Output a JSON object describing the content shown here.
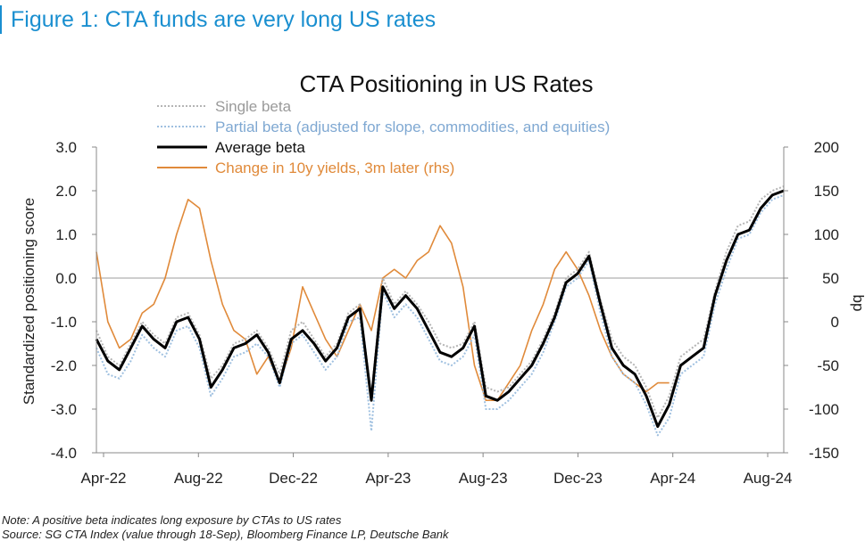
{
  "figure_title": "Figure 1: CTA funds are very long US rates",
  "notes": {
    "note": "Note: A positive beta indicates long exposure by CTAs to US rates",
    "source": "Source: SG CTA Index (value through 18-Sep), Bloomberg Finance LP, Deutsche Bank"
  },
  "colors": {
    "title_blue": "#1a8fd0",
    "single_beta": "#b5b5b5",
    "partial_beta": "#9fc0e0",
    "average_beta": "#000000",
    "yield_change": "#e08a3a"
  },
  "chart_data": {
    "type": "line",
    "title": "CTA Positioning in US Rates",
    "xlabel": "",
    "ylabel": "Standardized positioning score",
    "y2label": "bp",
    "x_ticks": [
      "Apr-22",
      "Aug-22",
      "Dec-22",
      "Apr-23",
      "Aug-23",
      "Dec-23",
      "Apr-24",
      "Aug-24"
    ],
    "x_range": [
      0,
      30
    ],
    "ylim": [
      -4.0,
      3.0
    ],
    "y_ticks": [
      "3.0",
      "2.0",
      "1.0",
      "0.0",
      "-1.0",
      "-2.0",
      "-3.0",
      "-4.0"
    ],
    "y2lim": [
      -150,
      200
    ],
    "y2_ticks": [
      "200",
      "150",
      "100",
      "50",
      "0",
      "-50",
      "-100",
      "-150"
    ],
    "legend": [
      "Single beta",
      "Partial beta (adjusted for slope, commodities, and equities)",
      "Average beta",
      "Change in 10y yields, 3m later (rhs)"
    ],
    "legend_position": "top-left",
    "series": [
      {
        "name": "Single beta",
        "axis": "left",
        "x": [
          0,
          0.5,
          1,
          1.5,
          2,
          2.5,
          3,
          3.5,
          4,
          4.5,
          5,
          5.5,
          6,
          6.5,
          7,
          7.5,
          8,
          8.5,
          9,
          9.5,
          10,
          10.5,
          11,
          11.5,
          12,
          12.5,
          13,
          13.5,
          14,
          14.5,
          15,
          15.5,
          16,
          16.5,
          17,
          17.5,
          18,
          18.5,
          19,
          19.5,
          20,
          20.5,
          21,
          21.5,
          22,
          22.5,
          23,
          23.5,
          24,
          24.5,
          25,
          25.5,
          26,
          26.5,
          27,
          27.5,
          28,
          28.5,
          29,
          29.5,
          30
        ],
        "y": [
          -1.2,
          -1.8,
          -2.0,
          -1.5,
          -1.0,
          -1.3,
          -1.5,
          -0.9,
          -0.8,
          -1.3,
          -2.3,
          -2.0,
          -1.5,
          -1.4,
          -1.2,
          -1.6,
          -2.2,
          -1.2,
          -1.0,
          -1.4,
          -1.8,
          -1.5,
          -0.8,
          -0.6,
          -2.7,
          0.0,
          -0.6,
          -0.3,
          -0.6,
          -1.0,
          -1.5,
          -1.6,
          -1.5,
          -1.0,
          -2.5,
          -2.6,
          -2.5,
          -2.2,
          -1.9,
          -1.4,
          -0.8,
          0.0,
          0.2,
          0.6,
          -0.5,
          -1.4,
          -1.8,
          -2.0,
          -2.5,
          -3.2,
          -2.7,
          -1.8,
          -1.6,
          -1.4,
          -0.3,
          0.6,
          1.2,
          1.3,
          1.8,
          2.0,
          2.1
        ]
      },
      {
        "name": "Partial beta (adjusted for slope, commodities, and equities)",
        "axis": "left",
        "x": [
          0,
          0.5,
          1,
          1.5,
          2,
          2.5,
          3,
          3.5,
          4,
          4.5,
          5,
          5.5,
          6,
          6.5,
          7,
          7.5,
          8,
          8.5,
          9,
          9.5,
          10,
          10.5,
          11,
          11.5,
          12,
          12.5,
          13,
          13.5,
          14,
          14.5,
          15,
          15.5,
          16,
          16.5,
          17,
          17.5,
          18,
          18.5,
          19,
          19.5,
          20,
          20.5,
          21,
          21.5,
          22,
          22.5,
          23,
          23.5,
          24,
          24.5,
          25,
          25.5,
          26,
          26.5,
          27,
          27.5,
          28,
          28.5,
          29,
          29.5,
          30
        ],
        "y": [
          -1.6,
          -2.2,
          -2.3,
          -1.9,
          -1.3,
          -1.6,
          -1.8,
          -1.2,
          -1.1,
          -1.6,
          -2.7,
          -2.3,
          -1.8,
          -1.7,
          -1.5,
          -1.8,
          -2.5,
          -1.5,
          -1.3,
          -1.7,
          -2.1,
          -1.8,
          -1.0,
          -0.9,
          -3.5,
          -0.3,
          -0.9,
          -0.6,
          -0.9,
          -1.4,
          -1.9,
          -2.0,
          -1.8,
          -1.3,
          -3.0,
          -3.0,
          -2.8,
          -2.5,
          -2.2,
          -1.7,
          -1.0,
          -0.2,
          0.0,
          0.4,
          -0.8,
          -1.8,
          -2.2,
          -2.4,
          -2.9,
          -3.6,
          -3.2,
          -2.2,
          -2.0,
          -1.8,
          -0.6,
          0.2,
          0.9,
          1.0,
          1.5,
          1.8,
          1.9
        ]
      },
      {
        "name": "Average beta",
        "axis": "left",
        "x": [
          0,
          0.5,
          1,
          1.5,
          2,
          2.5,
          3,
          3.5,
          4,
          4.5,
          5,
          5.5,
          6,
          6.5,
          7,
          7.5,
          8,
          8.5,
          9,
          9.5,
          10,
          10.5,
          11,
          11.5,
          12,
          12.5,
          13,
          13.5,
          14,
          14.5,
          15,
          15.5,
          16,
          16.5,
          17,
          17.5,
          18,
          18.5,
          19,
          19.5,
          20,
          20.5,
          21,
          21.5,
          22,
          22.5,
          23,
          23.5,
          24,
          24.5,
          25,
          25.5,
          26,
          26.5,
          27,
          27.5,
          28,
          28.5,
          29,
          29.5,
          30
        ],
        "y": [
          -1.4,
          -1.9,
          -2.1,
          -1.6,
          -1.1,
          -1.4,
          -1.6,
          -1.0,
          -0.9,
          -1.4,
          -2.5,
          -2.1,
          -1.6,
          -1.5,
          -1.3,
          -1.7,
          -2.4,
          -1.4,
          -1.2,
          -1.5,
          -1.9,
          -1.6,
          -0.9,
          -0.7,
          -2.8,
          -0.2,
          -0.7,
          -0.4,
          -0.7,
          -1.2,
          -1.7,
          -1.8,
          -1.6,
          -1.1,
          -2.7,
          -2.8,
          -2.6,
          -2.3,
          -2.0,
          -1.5,
          -0.9,
          -0.1,
          0.1,
          0.5,
          -0.6,
          -1.6,
          -2.0,
          -2.2,
          -2.7,
          -3.4,
          -2.9,
          -2.0,
          -1.8,
          -1.6,
          -0.4,
          0.4,
          1.0,
          1.1,
          1.6,
          1.9,
          2.0
        ]
      },
      {
        "name": "Change in 10y yields, 3m later (rhs)",
        "axis": "right",
        "x": [
          0,
          0.5,
          1,
          1.5,
          2,
          2.5,
          3,
          3.5,
          4,
          4.5,
          5,
          5.5,
          6,
          6.5,
          7,
          7.5,
          8,
          8.5,
          9,
          9.5,
          10,
          10.5,
          11,
          11.5,
          12,
          12.5,
          13,
          13.5,
          14,
          14.5,
          15,
          15.5,
          16,
          16.5,
          17,
          17.5,
          18,
          18.5,
          19,
          19.5,
          20,
          20.5,
          21,
          21.5,
          22,
          22.5,
          23,
          23.5,
          24,
          24.5,
          25
        ],
        "y": [
          80,
          0,
          -30,
          -20,
          10,
          20,
          50,
          100,
          140,
          130,
          70,
          20,
          -10,
          -20,
          -60,
          -40,
          -70,
          -30,
          40,
          10,
          -20,
          -40,
          -10,
          20,
          -10,
          50,
          60,
          50,
          70,
          80,
          110,
          90,
          40,
          -50,
          -90,
          -90,
          -70,
          -50,
          -10,
          20,
          60,
          80,
          60,
          30,
          -10,
          -40,
          -60,
          -70,
          -80,
          -70,
          -70
        ]
      }
    ]
  }
}
